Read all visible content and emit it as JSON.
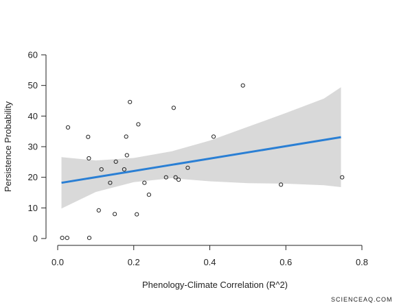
{
  "chart_data": {
    "type": "scatter",
    "title": "",
    "xlabel": "Phenology-Climate Correlation (R^2)",
    "ylabel": "Persistence Probability",
    "xlim": [
      0,
      0.8
    ],
    "ylim": [
      0,
      60
    ],
    "xticks": [
      0.0,
      0.2,
      0.4,
      0.6,
      0.8
    ],
    "xtick_labels": [
      "0.0",
      "0.2",
      "0.4",
      "0.6",
      "0.8"
    ],
    "yticks": [
      0,
      10,
      20,
      30,
      40,
      50,
      60
    ],
    "ytick_labels": [
      "0",
      "10",
      "20",
      "30",
      "40",
      "50",
      "60"
    ],
    "grid": false,
    "legend": "none",
    "colors": {
      "points": "#222222",
      "fit_line": "#2a7fd4",
      "confidence_band": "#d9d9d9"
    },
    "points": [
      {
        "x": 0.012,
        "y": 0.2
      },
      {
        "x": 0.025,
        "y": 0.2
      },
      {
        "x": 0.027,
        "y": 36.3
      },
      {
        "x": 0.08,
        "y": 33.2
      },
      {
        "x": 0.082,
        "y": 26.2
      },
      {
        "x": 0.083,
        "y": 0.2
      },
      {
        "x": 0.108,
        "y": 9.2
      },
      {
        "x": 0.115,
        "y": 22.6
      },
      {
        "x": 0.138,
        "y": 18.2
      },
      {
        "x": 0.15,
        "y": 8.0
      },
      {
        "x": 0.153,
        "y": 25.1
      },
      {
        "x": 0.175,
        "y": 22.6
      },
      {
        "x": 0.18,
        "y": 33.3
      },
      {
        "x": 0.182,
        "y": 27.2
      },
      {
        "x": 0.19,
        "y": 44.6
      },
      {
        "x": 0.208,
        "y": 7.9
      },
      {
        "x": 0.212,
        "y": 37.3
      },
      {
        "x": 0.228,
        "y": 18.2
      },
      {
        "x": 0.24,
        "y": 14.3
      },
      {
        "x": 0.285,
        "y": 20.0
      },
      {
        "x": 0.305,
        "y": 42.7
      },
      {
        "x": 0.31,
        "y": 20.0
      },
      {
        "x": 0.318,
        "y": 19.2
      },
      {
        "x": 0.342,
        "y": 23.1
      },
      {
        "x": 0.41,
        "y": 33.3
      },
      {
        "x": 0.487,
        "y": 50.0
      },
      {
        "x": 0.587,
        "y": 17.6
      },
      {
        "x": 0.748,
        "y": 20.0
      }
    ],
    "fit_line": {
      "x": [
        0.01,
        0.745
      ],
      "y": [
        18.2,
        33.1
      ]
    },
    "confidence_band": {
      "x": [
        0.01,
        0.1,
        0.2,
        0.3,
        0.4,
        0.5,
        0.6,
        0.7,
        0.745
      ],
      "upper": [
        26.6,
        25.5,
        26.3,
        28.5,
        32.0,
        36.5,
        41.0,
        45.7,
        49.4
      ],
      "lower": [
        9.8,
        15.2,
        18.4,
        19.7,
        18.7,
        18.1,
        17.9,
        17.4,
        16.8
      ]
    }
  },
  "watermark": "SCIENCEAQ.COM"
}
